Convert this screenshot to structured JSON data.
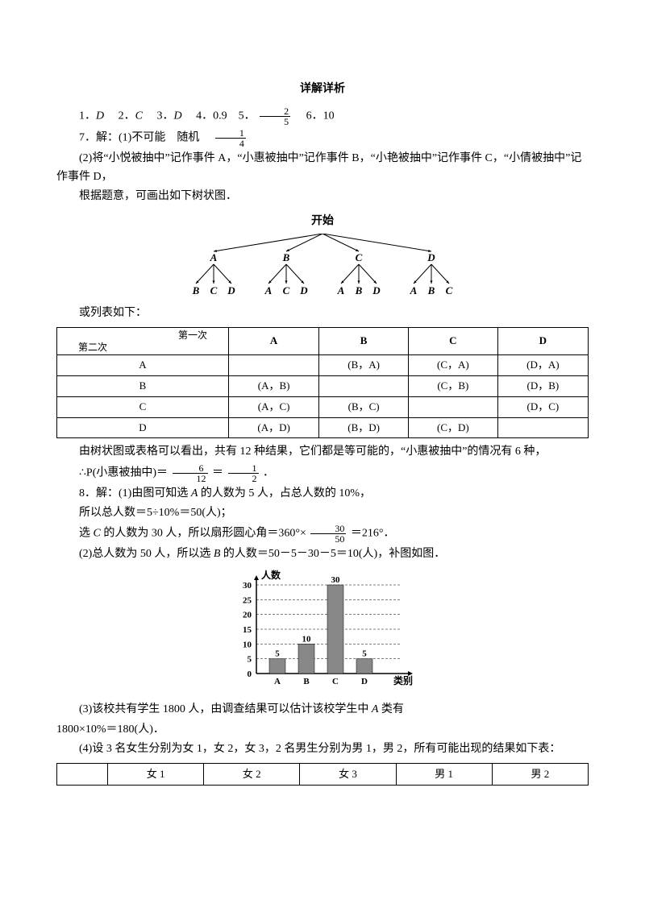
{
  "title": "详解详析",
  "line1_parts": {
    "a": "1．",
    "a_ans": "D",
    "b": "　2．",
    "b_ans": "C",
    "c": "　3．",
    "c_ans": "D",
    "d": "　4．0.9　5．",
    "e": "　6．10"
  },
  "frac25": {
    "num": "2",
    "den": "5"
  },
  "line7a": "7．解：(1)不可能　随机　",
  "frac14": {
    "num": "1",
    "den": "4"
  },
  "line7b": "(2)将“小悦被抽中”记作事件 A，“小惠被抽中”记作事件 B，“小艳被抽中”记作事件 C，“小倩被抽中”记作事件 D，",
  "line7c": "根据题意，可画出如下树状图．",
  "tree": {
    "root": "开始",
    "level1": [
      "A",
      "B",
      "C",
      "D"
    ],
    "leaves": [
      [
        "B",
        "C",
        "D"
      ],
      [
        "A",
        "C",
        "D"
      ],
      [
        "A",
        "B",
        "D"
      ],
      [
        "A",
        "B",
        "C"
      ]
    ]
  },
  "list_caption": "或列表如下：",
  "table1": {
    "corner_top": "第一次",
    "corner_bottom": "第二次",
    "cols": [
      "A",
      "B",
      "C",
      "D"
    ],
    "rows": [
      {
        "h": "A",
        "cells": [
          "",
          "(B，A)",
          "(C，A)",
          "(D，A)"
        ]
      },
      {
        "h": "B",
        "cells": [
          "(A，B)",
          "",
          "(C，B)",
          "(D，B)"
        ]
      },
      {
        "h": "C",
        "cells": [
          "(A，C)",
          "(B，C)",
          "",
          "(D，C)"
        ]
      },
      {
        "h": "D",
        "cells": [
          "(A，D)",
          "(B，D)",
          "(C，D)",
          ""
        ]
      }
    ]
  },
  "after_table1a": "由树状图或表格可以看出，共有 12 种结果，它们都是等可能的，“小惠被抽中”的情况有 6 种，",
  "prob_line_a": "∴P(小惠被抽中)＝",
  "frac612": {
    "num": "6",
    "den": "12"
  },
  "eq1": "＝",
  "frac12": {
    "num": "1",
    "den": "2"
  },
  "period": "．",
  "q8_1a": "8．解：(1)由图可知选 ",
  "q8_1a_it": "A",
  "q8_1a2": " 的人数为 5 人，占总人数的 10%，",
  "q8_1b": "所以总人数＝5÷10%＝50(人)；",
  "q8_1c_a": "选 ",
  "q8_1c_it": "C",
  "q8_1c_b": " 的人数为 30 人，所以扇形圆心角＝360°×",
  "frac3050": {
    "num": "30",
    "den": "50"
  },
  "q8_1c_c": "＝216°．",
  "q8_2": "(2)总人数为 50 人，所以选 ",
  "q8_2_it": "B",
  "q8_2b": " 的人数＝50－5－30－5＝10(人)，补图如图．",
  "barchart": {
    "ylabel": "人数",
    "xlabel": "类别",
    "yticks": [
      "0",
      "5",
      "10",
      "15",
      "20",
      "25",
      "30"
    ],
    "categories": [
      "A",
      "B",
      "C",
      "D"
    ],
    "values": [
      5,
      10,
      30,
      5
    ],
    "value_labels": [
      "5",
      "10",
      "30",
      "5"
    ],
    "bar_color": "#888888",
    "grid_color": "#000000",
    "ymax": 30
  },
  "q8_3a": "(3)该校共有学生 1800 人，由调查结果可以估计该校学生中 ",
  "q8_3a_it": "A",
  "q8_3a2": " 类有",
  "q8_3b": "1800×10%＝180(人)．",
  "q8_4": "(4)设 3 名女生分别为女 1，女 2，女 3，2 名男生分别为男 1，男 2，所有可能出现的结果如下表：",
  "table2_cols": [
    "",
    "女 1",
    "女 2",
    "女 3",
    "男 1",
    "男 2"
  ]
}
